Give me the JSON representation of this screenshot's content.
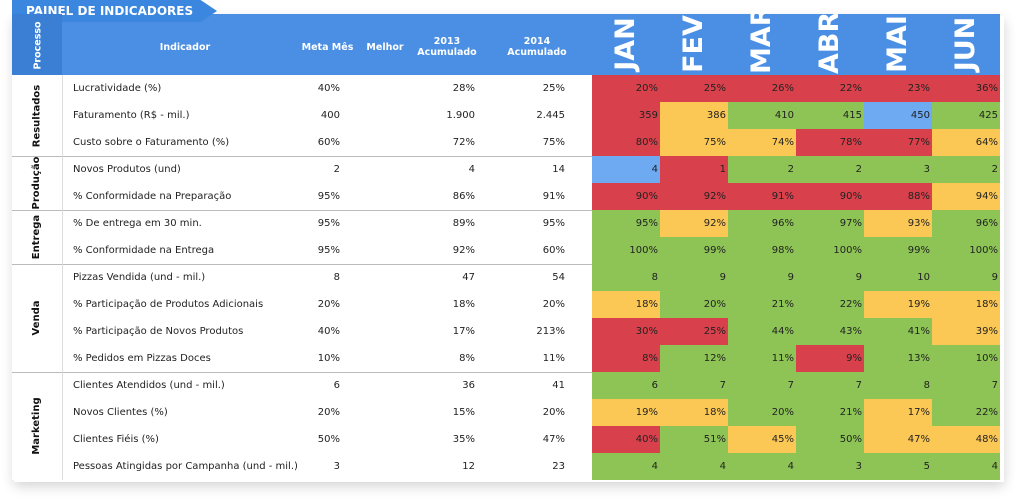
{
  "header": {
    "title": "PAINEL DE INDICADORES"
  },
  "table": {
    "columns": {
      "process": "Processo",
      "indicator": "Indicador",
      "meta": "Meta Mês",
      "best": "Melhor",
      "y2013": "2013 Acumulado",
      "y2014": "2014 Acumulado",
      "months": [
        "JAN",
        "FEV",
        "MAR",
        "ABR",
        "MAI",
        "JUN"
      ]
    },
    "groups": [
      {
        "process": "Resultados",
        "rows": [
          {
            "indicator": "Lucratividade (%)",
            "meta": "40%",
            "y2013": "28%",
            "y2014": "25%",
            "months": [
              "20%",
              "25%",
              "26%",
              "22%",
              "23%",
              "36%"
            ],
            "colors": [
              "#d8414c",
              "#d8414c",
              "#d8414c",
              "#d8414c",
              "#d8414c",
              "#d8414c"
            ]
          },
          {
            "indicator": "Faturamento (R$ - mil.)",
            "meta": "400",
            "y2013": "1.900",
            "y2014": "2.445",
            "months": [
              "359",
              "386",
              "410",
              "415",
              "450",
              "425"
            ],
            "colors": [
              "#d8414c",
              "#fcc855",
              "#8dc455",
              "#8dc455",
              "#6eaaf2",
              "#8dc455"
            ]
          },
          {
            "indicator": "Custo sobre o Faturamento (%)",
            "meta": "60%",
            "y2013": "72%",
            "y2014": "75%",
            "months": [
              "80%",
              "75%",
              "74%",
              "78%",
              "77%",
              "64%"
            ],
            "colors": [
              "#d8414c",
              "#fcc855",
              "#fcc855",
              "#d8414c",
              "#d8414c",
              "#fcc855"
            ]
          }
        ]
      },
      {
        "process": "Produção",
        "rows": [
          {
            "indicator": "Novos Produtos (und)",
            "meta": "2",
            "y2013": "4",
            "y2014": "14",
            "months": [
              "4",
              "1",
              "2",
              "2",
              "3",
              "2"
            ],
            "colors": [
              "#6eaaf2",
              "#d8414c",
              "#8dc455",
              "#8dc455",
              "#8dc455",
              "#8dc455"
            ]
          },
          {
            "indicator": "% Conformidade na Preparação",
            "meta": "95%",
            "y2013": "86%",
            "y2014": "91%",
            "months": [
              "90%",
              "92%",
              "91%",
              "90%",
              "88%",
              "94%"
            ],
            "colors": [
              "#d8414c",
              "#d8414c",
              "#d8414c",
              "#d8414c",
              "#d8414c",
              "#fcc855"
            ]
          }
        ]
      },
      {
        "process": "Entrega",
        "rows": [
          {
            "indicator": "% De entrega em 30 min.",
            "meta": "95%",
            "y2013": "89%",
            "y2014": "95%",
            "months": [
              "95%",
              "92%",
              "96%",
              "97%",
              "93%",
              "96%"
            ],
            "colors": [
              "#8dc455",
              "#fcc855",
              "#8dc455",
              "#8dc455",
              "#fcc855",
              "#8dc455"
            ]
          },
          {
            "indicator": "% Conformidade na Entrega",
            "meta": "95%",
            "y2013": "92%",
            "y2014": "60%",
            "months": [
              "100%",
              "99%",
              "98%",
              "100%",
              "99%",
              "100%"
            ],
            "colors": [
              "#8dc455",
              "#8dc455",
              "#8dc455",
              "#8dc455",
              "#8dc455",
              "#8dc455"
            ]
          }
        ]
      },
      {
        "process": "Venda",
        "rows": [
          {
            "indicator": "Pizzas Vendida (und - mil.)",
            "meta": "8",
            "y2013": "47",
            "y2014": "54",
            "months": [
              "8",
              "9",
              "9",
              "9",
              "10",
              "9"
            ],
            "colors": [
              "#8dc455",
              "#8dc455",
              "#8dc455",
              "#8dc455",
              "#8dc455",
              "#8dc455"
            ]
          },
          {
            "indicator": "% Participação de Produtos Adicionais",
            "meta": "20%",
            "y2013": "18%",
            "y2014": "20%",
            "months": [
              "18%",
              "20%",
              "21%",
              "22%",
              "19%",
              "18%"
            ],
            "colors": [
              "#fcc855",
              "#8dc455",
              "#8dc455",
              "#8dc455",
              "#fcc855",
              "#fcc855"
            ]
          },
          {
            "indicator": "% Participação de Novos Produtos",
            "meta": "40%",
            "y2013": "17%",
            "y2014": "213%",
            "months": [
              "30%",
              "25%",
              "44%",
              "43%",
              "41%",
              "39%"
            ],
            "colors": [
              "#d8414c",
              "#d8414c",
              "#8dc455",
              "#8dc455",
              "#8dc455",
              "#fcc855"
            ]
          },
          {
            "indicator": "% Pedidos em Pizzas Doces",
            "meta": "10%",
            "y2013": "8%",
            "y2014": "11%",
            "months": [
              "8%",
              "12%",
              "11%",
              "9%",
              "13%",
              "10%"
            ],
            "colors": [
              "#d8414c",
              "#8dc455",
              "#8dc455",
              "#d8414c",
              "#8dc455",
              "#8dc455"
            ]
          }
        ]
      },
      {
        "process": "Marketing",
        "rows": [
          {
            "indicator": "Clientes Atendidos (und - mil.)",
            "meta": "6",
            "y2013": "36",
            "y2014": "41",
            "months": [
              "6",
              "7",
              "7",
              "7",
              "8",
              "7"
            ],
            "colors": [
              "#8dc455",
              "#8dc455",
              "#8dc455",
              "#8dc455",
              "#8dc455",
              "#8dc455"
            ]
          },
          {
            "indicator": "Novos Clientes (%)",
            "meta": "20%",
            "y2013": "15%",
            "y2014": "20%",
            "months": [
              "19%",
              "18%",
              "20%",
              "21%",
              "17%",
              "22%"
            ],
            "colors": [
              "#fcc855",
              "#fcc855",
              "#8dc455",
              "#8dc455",
              "#fcc855",
              "#8dc455"
            ]
          },
          {
            "indicator": "Clientes Fiéis (%)",
            "meta": "50%",
            "y2013": "35%",
            "y2014": "47%",
            "months": [
              "40%",
              "51%",
              "45%",
              "50%",
              "47%",
              "48%"
            ],
            "colors": [
              "#d8414c",
              "#8dc455",
              "#fcc855",
              "#8dc455",
              "#fcc855",
              "#fcc855"
            ]
          },
          {
            "indicator": "Pessoas Atingidas por Campanha (und - mil.)",
            "meta": "3",
            "y2013": "12",
            "y2014": "23",
            "months": [
              "4",
              "4",
              "4",
              "3",
              "5",
              "4"
            ],
            "colors": [
              "#8dc455",
              "#8dc455",
              "#8dc455",
              "#8dc455",
              "#8dc455",
              "#8dc455"
            ]
          }
        ]
      }
    ]
  }
}
